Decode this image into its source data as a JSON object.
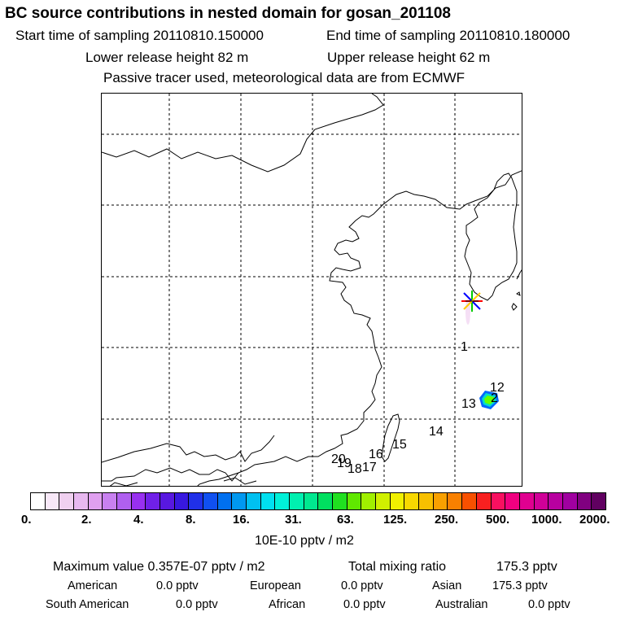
{
  "header": {
    "title": "BC  source contributions in nested domain for gosan_201108",
    "start_label": "Start time of sampling 20110810.150000",
    "end_label": "End time of sampling 20110810.180000",
    "lower_label": "Lower release height   82 m",
    "upper_label": "Upper release height   62 m",
    "tracer_note": "Passive tracer used, meteorological data are from ECMWF"
  },
  "map": {
    "trajectory_labels": [
      "1",
      "12",
      "2",
      "13",
      "14",
      "15",
      "16",
      "17",
      "18",
      "19",
      "20"
    ],
    "colors": {
      "coast": "#000000",
      "grid": "#000000",
      "star": [
        "#ff0000",
        "#00cc00",
        "#0000ff",
        "#ffcc00"
      ],
      "plume": [
        "#0066ff",
        "#00ddcc",
        "#66ff00"
      ]
    }
  },
  "colorbar": {
    "colors": [
      "#ffffff",
      "#f8e8f8",
      "#f0d0f0",
      "#e8b8f0",
      "#e0a0f0",
      "#c880f0",
      "#b060f0",
      "#9830f0",
      "#7020e8",
      "#5818e0",
      "#3818e0",
      "#2030e8",
      "#1050f0",
      "#0070f0",
      "#0098f0",
      "#00c0f0",
      "#00e0f0",
      "#00f0d8",
      "#00f0b0",
      "#00e890",
      "#00e060",
      "#20e020",
      "#60e800",
      "#a0f000",
      "#d0f000",
      "#f0f000",
      "#f8d800",
      "#f8c000",
      "#f8a000",
      "#f88000",
      "#f85000",
      "#f82020",
      "#f81060",
      "#f00080",
      "#e00090",
      "#d00098",
      "#b800a0",
      "#a000a0",
      "#800080",
      "#600060"
    ],
    "ticks": [
      "0.",
      "2.",
      "4.",
      "8.",
      "16.",
      "31.",
      "63.",
      "125.",
      "250.",
      "500.",
      "1000.",
      "2000."
    ],
    "unit": "10E-10 pptv / m2"
  },
  "stats": {
    "max_label": "Maximum value  0.357E-07 pptv / m2",
    "total_label": "Total mixing ratio",
    "total_value": "175.3 pptv",
    "regions": [
      {
        "name": "American",
        "value": "0.0 pptv"
      },
      {
        "name": "European",
        "value": "0.0 pptv"
      },
      {
        "name": "Asian",
        "value": "175.3 pptv"
      },
      {
        "name": "South American",
        "value": "0.0 pptv"
      },
      {
        "name": "African",
        "value": "0.0 pptv"
      },
      {
        "name": "Australian",
        "value": "0.0 pptv"
      }
    ]
  }
}
